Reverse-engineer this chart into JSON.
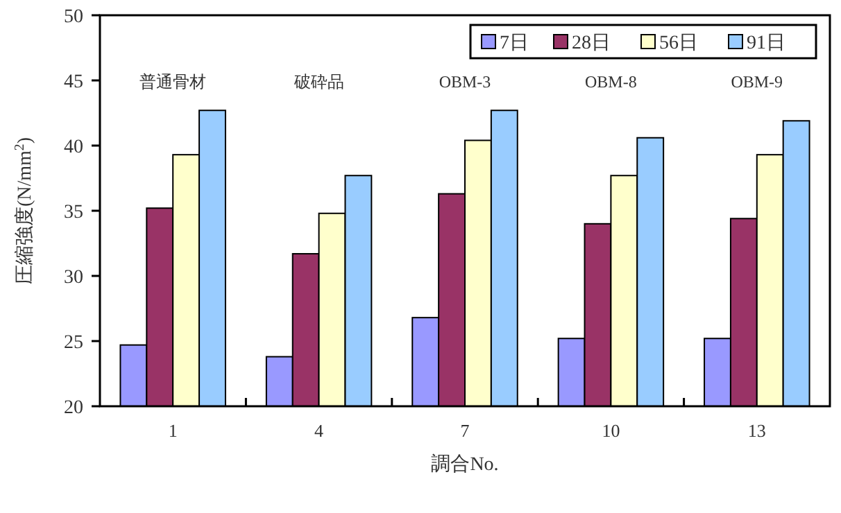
{
  "chart_data": {
    "type": "bar",
    "xlabel": "調合No.",
    "ylabel": "圧縮強度(N/mm$^{2}$)",
    "categories": [
      "1",
      "4",
      "7",
      "10",
      "13"
    ],
    "series": [
      {
        "name": "7日",
        "color": "#9999ff",
        "values": [
          24.7,
          23.8,
          26.8,
          25.2,
          25.2
        ]
      },
      {
        "name": "28日",
        "color": "#993366",
        "values": [
          35.2,
          31.7,
          36.3,
          34.0,
          34.4
        ]
      },
      {
        "name": "56日",
        "color": "#ffffcc",
        "values": [
          39.3,
          34.8,
          40.4,
          37.7,
          39.3
        ]
      },
      {
        "name": "91日",
        "color": "#99ccff",
        "values": [
          42.7,
          37.7,
          42.7,
          40.6,
          41.9
        ]
      }
    ],
    "ylim": [
      20,
      50
    ],
    "yticks": [
      20,
      25,
      30,
      35,
      40,
      45,
      50
    ],
    "grid": false,
    "legend": "top right",
    "annotations": [
      "普通骨材",
      "破砕品",
      "OBM-3",
      "OBM-8",
      "OBM-9"
    ]
  }
}
